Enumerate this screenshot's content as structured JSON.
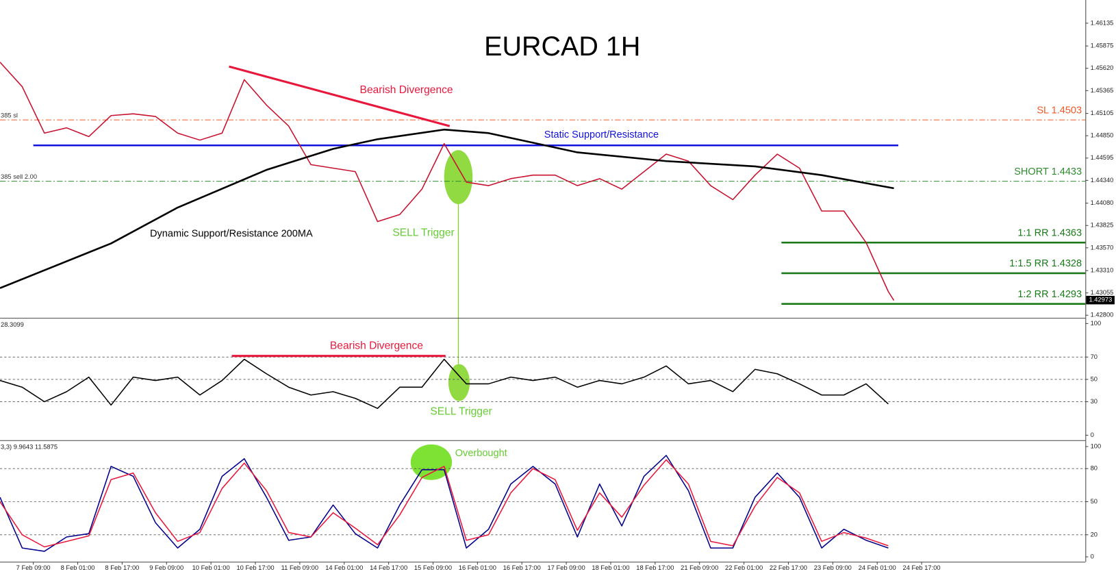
{
  "chart_data": [
    {
      "type": "line",
      "title": "EURCAD 1H",
      "xlim": [
        0,
        391
      ],
      "ylim": [
        1.4277,
        1.464
      ],
      "x": [
        0,
        8,
        16,
        24,
        32,
        40,
        48,
        56,
        64,
        72,
        80,
        88,
        96,
        104,
        112,
        120,
        128,
        136,
        144,
        152,
        160,
        168,
        176,
        184,
        192,
        200,
        208,
        216,
        224,
        232,
        240,
        248,
        256,
        264,
        272,
        280,
        288,
        296,
        304,
        312,
        320,
        322
      ],
      "yticks": [
        {
          "value": 1.428,
          "label": "1.42800"
        },
        {
          "value": 1.43055,
          "label": "1.43055"
        },
        {
          "value": 1.4331,
          "label": "1.43310"
        },
        {
          "value": 1.4357,
          "label": "1.43570"
        },
        {
          "value": 1.43825,
          "label": "1.43825"
        },
        {
          "value": 1.4408,
          "label": "1.44080"
        },
        {
          "value": 1.4434,
          "label": "1.44340"
        },
        {
          "value": 1.44595,
          "label": "1.44595"
        },
        {
          "value": 1.4485,
          "label": "1.44850"
        },
        {
          "value": 1.45105,
          "label": "1.45105"
        },
        {
          "value": 1.45365,
          "label": "1.45365"
        },
        {
          "value": 1.4562,
          "label": "1.45620"
        },
        {
          "value": 1.45875,
          "label": "1.45875"
        },
        {
          "value": 1.46135,
          "label": "1.46135"
        }
      ],
      "series": [
        {
          "color": "#c8102e",
          "values": [
            1.4569,
            1.4541,
            1.4488,
            1.4494,
            1.4484,
            1.4508,
            1.451,
            1.4507,
            1.4488,
            1.448,
            1.4488,
            1.4549,
            1.452,
            1.4496,
            1.4452,
            1.4448,
            1.4444,
            1.4387,
            1.4395,
            1.4424,
            1.4476,
            1.4432,
            1.4428,
            1.4436,
            1.444,
            1.444,
            1.4428,
            1.4436,
            1.4424,
            1.4444,
            1.4464,
            1.4456,
            1.4428,
            1.4412,
            1.444,
            1.4464,
            1.4448,
            1.4399,
            1.4399,
            1.4363,
            1.4307,
            1.4297
          ]
        },
        {
          "name": "Dynamic Support/Resistance 200MA",
          "color": "#000000",
          "x": [
            0,
            40,
            64,
            96,
            120,
            136,
            160,
            176,
            208,
            240,
            272,
            296,
            322
          ],
          "values": [
            1.4311,
            1.4362,
            1.4403,
            1.4446,
            1.447,
            1.4481,
            1.4492,
            1.4488,
            1.4466,
            1.4456,
            1.445,
            1.444,
            1.4425
          ]
        }
      ],
      "levels": [
        {
          "label": "SL 1.4503",
          "value": 1.4503,
          "color": "#f05a28",
          "style": "dashdot"
        },
        {
          "label": "SHORT 1.4433",
          "value": 1.4433,
          "color": "#2e8b2e",
          "style": "dashdot"
        },
        {
          "label": "1:1 RR 1.4363",
          "value": 1.4363,
          "color": "#1a7a1a",
          "style": "solid",
          "x": [
            281.5,
            391
          ]
        },
        {
          "label": "1:1.5 RR 1.4328",
          "value": 1.4328,
          "color": "#1a7a1a",
          "style": "solid",
          "x": [
            281.5,
            391
          ]
        },
        {
          "label": "1:2 RR 1.4293",
          "value": 1.4293,
          "color": "#1a7a1a",
          "style": "solid",
          "x": [
            281.5,
            391
          ]
        },
        {
          "label": "Static Support/Resistance",
          "value": 1.4474,
          "color": "#1010e0",
          "style": "solid",
          "x": [
            12,
            323.6
          ]
        }
      ],
      "trendlines": [
        {
          "label": "Bearish Divergence",
          "x": [
            82.5,
            162
          ],
          "values": [
            1.4564,
            1.4496
          ],
          "color": "#e8173c"
        }
      ],
      "annotations": [
        {
          "text": "SELL Trigger",
          "color": "#66cc33"
        }
      ],
      "last_price": {
        "value": 1.42973,
        "label": "1.42973"
      },
      "order_labels": [
        "385 sl",
        "385 sell 2.00"
      ]
    },
    {
      "type": "line",
      "indicator_label": "28.3099",
      "xlim": [
        0,
        391
      ],
      "ylim": [
        -3.8,
        103.8
      ],
      "yticks": [
        0,
        30,
        50,
        70,
        100
      ],
      "grid": true,
      "x": [
        0,
        8,
        16,
        24,
        32,
        40,
        48,
        56,
        64,
        72,
        80,
        88,
        96,
        104,
        112,
        120,
        128,
        136,
        144,
        152,
        160,
        168,
        176,
        184,
        192,
        200,
        208,
        216,
        224,
        232,
        240,
        248,
        256,
        264,
        272,
        280,
        288,
        296,
        304,
        312,
        320
      ],
      "series": [
        {
          "color": "#000000",
          "values": [
            49,
            43,
            30,
            39,
            52,
            27,
            52,
            49,
            52,
            36,
            49,
            68,
            55,
            43,
            36,
            39,
            33,
            24,
            43,
            43,
            68,
            46,
            46,
            52,
            49,
            52,
            43,
            49,
            46,
            52,
            62,
            46,
            49,
            39,
            59,
            55,
            46,
            36,
            36,
            46,
            28
          ]
        }
      ],
      "trendlines": [
        {
          "label": "Bearish Divergence",
          "x": [
            83.5,
            160.5
          ],
          "values": [
            71,
            71
          ],
          "color": "#e8173c"
        }
      ],
      "annotations": [
        {
          "text": "SELL Trigger",
          "color": "#66cc33"
        }
      ]
    },
    {
      "type": "line",
      "indicator_label": "3,3) 9.9643 11.5875",
      "xlim": [
        0,
        391
      ],
      "ylim": [
        -4.5,
        104.5
      ],
      "yticks": [
        0,
        20,
        50,
        80,
        100
      ],
      "grid": true,
      "x": [
        0,
        8,
        16,
        24,
        32,
        40,
        48,
        56,
        64,
        72,
        80,
        88,
        96,
        104,
        112,
        120,
        128,
        136,
        144,
        152,
        160,
        168,
        176,
        184,
        192,
        200,
        208,
        216,
        224,
        232,
        240,
        248,
        256,
        264,
        272,
        280,
        288,
        296,
        304,
        312,
        320
      ],
      "series": [
        {
          "color": "#00008b",
          "values": [
            54,
            8,
            5,
            18,
            21,
            82,
            73,
            31,
            8,
            25,
            73,
            89,
            54,
            15,
            18,
            47,
            21,
            8,
            47,
            79,
            79,
            8,
            25,
            66,
            82,
            66,
            18,
            66,
            28,
            73,
            92,
            60,
            8,
            8,
            54,
            76,
            54,
            8,
            25,
            15,
            8
          ]
        },
        {
          "color": "#e8173c",
          "values": [
            50,
            20,
            9,
            14,
            19,
            70,
            76,
            40,
            14,
            22,
            62,
            85,
            60,
            22,
            18,
            40,
            26,
            11,
            38,
            72,
            82,
            15,
            20,
            58,
            80,
            70,
            24,
            58,
            36,
            65,
            88,
            66,
            14,
            10,
            46,
            72,
            58,
            14,
            22,
            17,
            10
          ]
        }
      ],
      "annotations": [
        {
          "text": "Overbought",
          "color": "#66cc33"
        }
      ],
      "xticks": [
        {
          "value": 12,
          "label": "7 Feb 09:00"
        },
        {
          "value": 28,
          "label": "8 Feb 01:00"
        },
        {
          "value": 44,
          "label": "8 Feb 17:00"
        },
        {
          "value": 60,
          "label": "9 Feb 09:00"
        },
        {
          "value": 76,
          "label": "10 Feb 01:00"
        },
        {
          "value": 92,
          "label": "10 Feb 17:00"
        },
        {
          "value": 108,
          "label": "11 Feb 09:00"
        },
        {
          "value": 124,
          "label": "14 Feb 01:00"
        },
        {
          "value": 140,
          "label": "14 Feb 17:00"
        },
        {
          "value": 156,
          "label": "15 Feb 09:00"
        },
        {
          "value": 172,
          "label": "16 Feb 01:00"
        },
        {
          "value": 188,
          "label": "16 Feb 17:00"
        },
        {
          "value": 204,
          "label": "17 Feb 09:00"
        },
        {
          "value": 220,
          "label": "18 Feb 01:00"
        },
        {
          "value": 236,
          "label": "18 Feb 17:00"
        },
        {
          "value": 252,
          "label": "21 Feb 09:00"
        },
        {
          "value": 268,
          "label": "22 Feb 01:00"
        },
        {
          "value": 284,
          "label": "22 Feb 17:00"
        },
        {
          "value": 300,
          "label": "23 Feb 09:00"
        },
        {
          "value": 316,
          "label": "24 Feb 01:00"
        },
        {
          "value": 332,
          "label": "24 Feb 17:00"
        }
      ]
    }
  ]
}
